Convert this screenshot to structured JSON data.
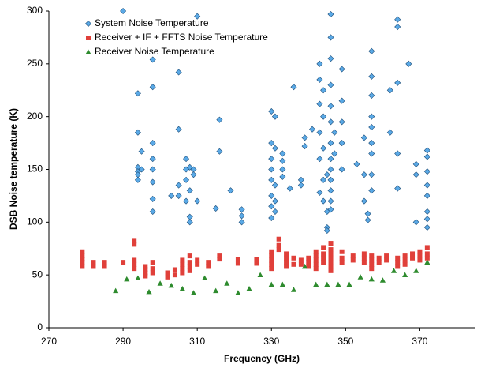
{
  "chart_data": {
    "type": "scatter",
    "x_label": "Frequency (GHz)",
    "y_label": "DSB Noise temperature (K)",
    "xlim": [
      270,
      385
    ],
    "xticks": [
      270,
      290,
      310,
      330,
      350,
      370
    ],
    "ylim": [
      0,
      300
    ],
    "yticks": [
      0,
      50,
      100,
      150,
      200,
      250,
      300
    ],
    "legend": "top-left",
    "series": [
      {
        "name": "System Noise Temperature",
        "color": "#5aa9e6",
        "marker": "diamond",
        "x": [
          290,
          294,
          294,
          294,
          294,
          294,
          294,
          295,
          295,
          298,
          298,
          298,
          298,
          298,
          298,
          298,
          298,
          303,
          305,
          305,
          305,
          305,
          307,
          307,
          307,
          307,
          308,
          308,
          308,
          308,
          309,
          309,
          310,
          310,
          315,
          316,
          316,
          319,
          322,
          322,
          322,
          330,
          330,
          330,
          330,
          330,
          330,
          330,
          330,
          331,
          331,
          331,
          331,
          331,
          333,
          333,
          333,
          333,
          335,
          336,
          338,
          338,
          339,
          339,
          341,
          343,
          343,
          343,
          343,
          343,
          343,
          344,
          344,
          344,
          344,
          344,
          345,
          345,
          345,
          345,
          346,
          346,
          346,
          346,
          346,
          346,
          346,
          346,
          346,
          346,
          346,
          346,
          346,
          347,
          347,
          349,
          349,
          349,
          349,
          349,
          353,
          355,
          355,
          355,
          356,
          356,
          357,
          357,
          357,
          357,
          357,
          357,
          357,
          357,
          357,
          362,
          362,
          364,
          364,
          364,
          364,
          364,
          367,
          369,
          369,
          369,
          372,
          372,
          372,
          372,
          372,
          372,
          372,
          372
        ],
        "values": [
          300,
          222,
          185,
          152,
          148,
          145,
          140,
          167,
          150,
          254,
          228,
          175,
          160,
          150,
          138,
          122,
          110,
          125,
          242,
          188,
          135,
          125,
          160,
          150,
          140,
          120,
          152,
          130,
          105,
          100,
          150,
          145,
          295,
          120,
          113,
          197,
          167,
          130,
          112,
          106,
          100,
          205,
          175,
          160,
          150,
          140,
          125,
          115,
          104,
          200,
          170,
          135,
          120,
          110,
          165,
          158,
          150,
          143,
          132,
          228,
          140,
          135,
          180,
          172,
          188,
          250,
          235,
          212,
          185,
          160,
          128,
          225,
          200,
          170,
          140,
          120,
          95,
          92,
          110,
          145,
          297,
          275,
          255,
          230,
          210,
          195,
          175,
          160,
          150,
          140,
          130,
          120,
          112,
          185,
          165,
          245,
          215,
          195,
          175,
          150,
          155,
          180,
          145,
          120,
          108,
          102,
          262,
          238,
          220,
          200,
          190,
          175,
          165,
          145,
          130,
          225,
          185,
          292,
          285,
          232,
          165,
          132,
          250,
          155,
          145,
          100,
          168,
          162,
          148,
          135,
          125,
          110,
          103,
          95
        ]
      },
      {
        "name": "Receiver + IF + FFTS Noise Temperature",
        "color": "#e0403a",
        "marker": "square",
        "x": [
          279,
          279,
          279,
          279,
          279,
          282,
          282,
          285,
          285,
          290,
          293,
          293,
          293,
          293,
          293,
          296,
          296,
          296,
          296,
          298,
          298,
          298,
          302,
          302,
          304,
          304,
          306,
          306,
          306,
          306,
          308,
          308,
          308,
          308,
          310,
          310,
          313,
          313,
          316,
          316,
          321,
          321,
          326,
          326,
          330,
          330,
          330,
          330,
          330,
          332,
          332,
          332,
          334,
          334,
          334,
          334,
          336,
          336,
          338,
          338,
          340,
          340,
          340,
          342,
          342,
          342,
          342,
          342,
          344,
          344,
          344,
          344,
          346,
          346,
          346,
          346,
          346,
          346,
          346,
          349,
          349,
          349,
          352,
          352,
          355,
          355,
          355,
          357,
          357,
          357,
          357,
          359,
          359,
          361,
          361,
          364,
          364,
          364,
          366,
          366,
          366,
          368,
          368,
          370,
          370,
          370,
          372,
          372,
          372
        ],
        "values": [
          72,
          68,
          65,
          62,
          58,
          62,
          58,
          62,
          58,
          62,
          82,
          79,
          64,
          60,
          56,
          58,
          55,
          52,
          49,
          62,
          56,
          52,
          52,
          48,
          50,
          55,
          64,
          60,
          56,
          52,
          68,
          62,
          58,
          54,
          64,
          60,
          62,
          58,
          68,
          65,
          65,
          61,
          65,
          61,
          72,
          68,
          64,
          60,
          56,
          84,
          78,
          74,
          70,
          66,
          62,
          58,
          66,
          60,
          64,
          60,
          66,
          62,
          58,
          72,
          68,
          64,
          60,
          56,
          76,
          70,
          66,
          62,
          80,
          74,
          70,
          66,
          62,
          58,
          54,
          72,
          66,
          62,
          68,
          64,
          70,
          66,
          62,
          68,
          64,
          60,
          56,
          66,
          62,
          68,
          64,
          66,
          62,
          58,
          68,
          64,
          60,
          70,
          66,
          72,
          68,
          64,
          76,
          70,
          66
        ]
      },
      {
        "name": "Receiver Noise Temperature",
        "color": "#2e8b2e",
        "marker": "triangle",
        "x": [
          288,
          291,
          294,
          297,
          300,
          303,
          306,
          309,
          312,
          315,
          318,
          321,
          324,
          327,
          330,
          333,
          336,
          339,
          342,
          345,
          348,
          351,
          354,
          357,
          360,
          363,
          366,
          369,
          372
        ],
        "values": [
          35,
          46,
          47,
          34,
          42,
          40,
          37,
          33,
          47,
          35,
          42,
          33,
          37,
          50,
          41,
          41,
          36,
          58,
          41,
          41,
          41,
          41,
          48,
          46,
          45,
          54,
          50,
          54,
          62
        ]
      }
    ]
  }
}
